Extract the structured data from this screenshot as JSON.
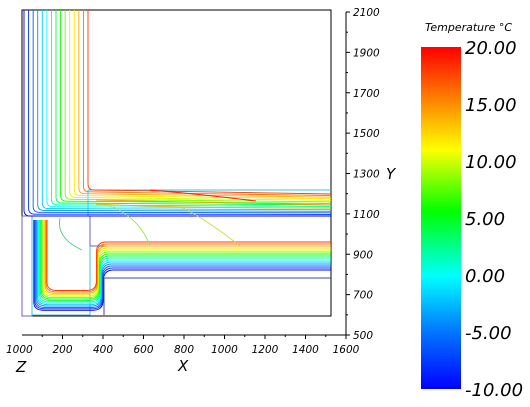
{
  "colors": {
    "frame": "#000000",
    "geometry_outline": "#8060c0",
    "colorbar_stops": [
      "#0000ff",
      "#0080ff",
      "#00ffff",
      "#00ff00",
      "#ffff00",
      "#ff0000"
    ]
  },
  "chart_data": {
    "type": "contour",
    "title": "",
    "xlabel": "X",
    "ylabel": "Y",
    "zlabel": "Z",
    "xlim": [
      0,
      1600
    ],
    "ylim": [
      500,
      2100
    ],
    "x_ticks": [
      "200",
      "400",
      "600",
      "800",
      "1000",
      "1200",
      "1400",
      "1600"
    ],
    "x_origin_label": "1000",
    "y_ticks": [
      "500",
      "700",
      "900",
      "1100",
      "1300",
      "1500",
      "1700",
      "1900",
      "2100"
    ],
    "colorbar": {
      "title": "Temperature °C",
      "min": -10,
      "max": 20,
      "labels": [
        "20.00",
        "15.00",
        "10.00",
        "5.00",
        "0.00",
        "-5.00",
        "-10.00"
      ]
    },
    "isotherm_levels": [
      -10,
      -8,
      -6,
      -4,
      -2,
      0,
      2,
      4,
      6,
      8,
      10,
      12,
      14,
      16,
      18
    ]
  }
}
